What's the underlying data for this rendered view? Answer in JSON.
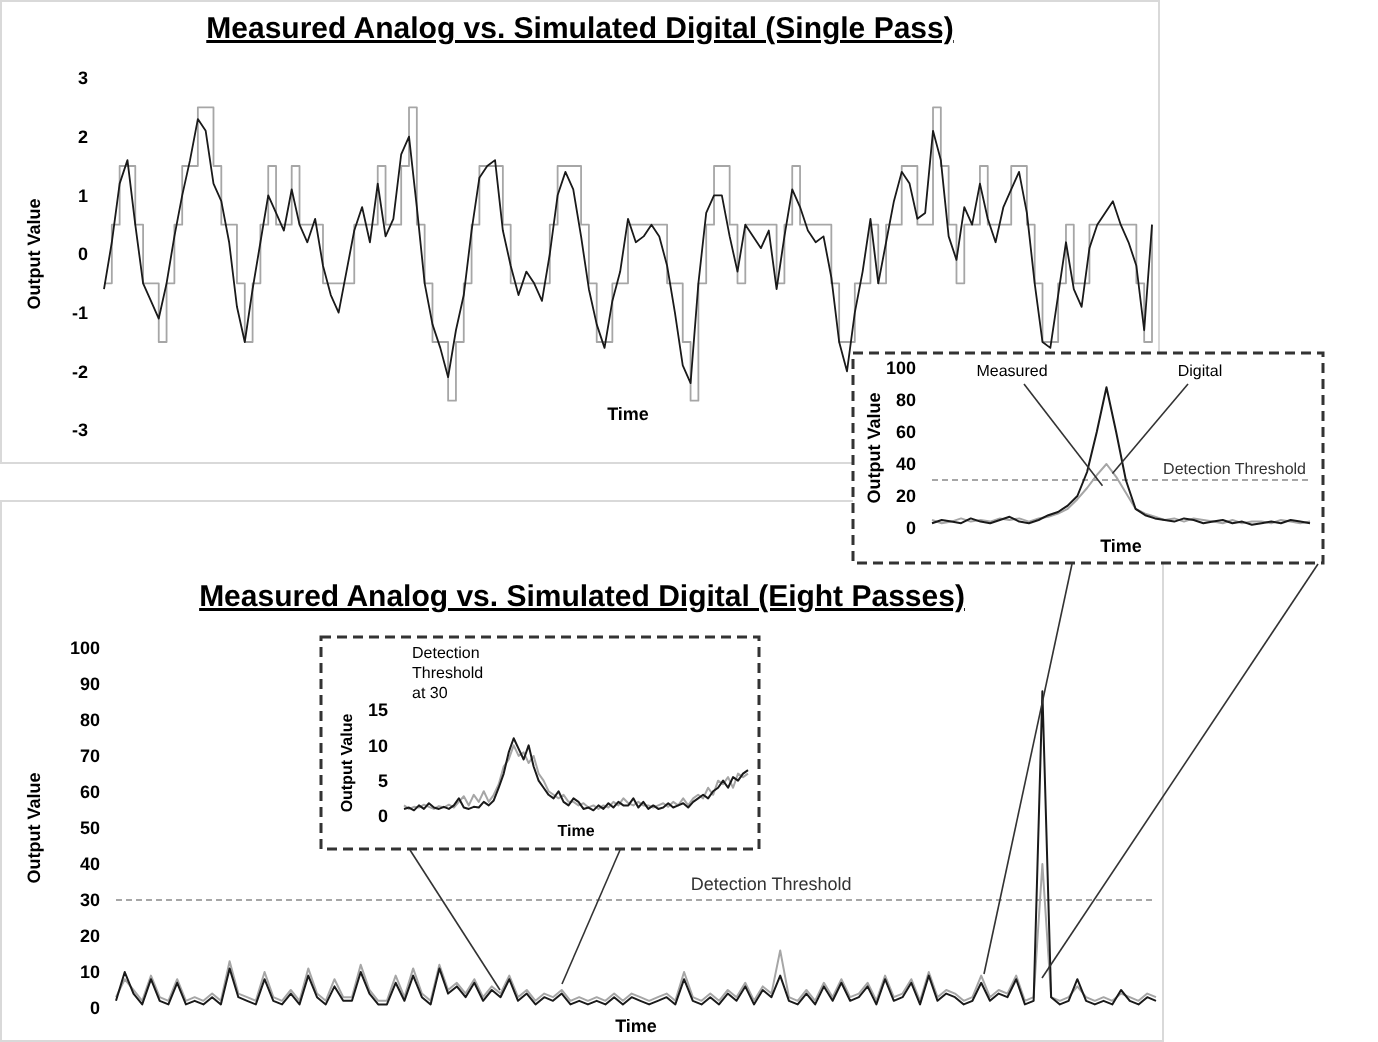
{
  "chart_data": [
    {
      "type": "line",
      "title": "Measured Analog vs. Simulated Digital (Single Pass)",
      "xlabel": "Time",
      "ylabel": "Output Value",
      "ylim": [
        -3,
        3
      ],
      "yticks": [
        -3,
        -2,
        -1,
        0,
        1,
        2,
        3
      ],
      "grid": false,
      "legend": false,
      "categories": [
        null,
        null,
        null,
        null,
        null,
        null,
        null,
        null,
        null,
        null,
        null,
        null,
        null,
        null,
        null,
        null,
        null,
        null,
        null,
        null,
        null,
        null,
        null,
        null,
        null,
        null,
        null,
        null,
        null,
        null,
        null,
        null,
        null,
        null,
        null,
        null,
        null,
        null,
        null,
        null,
        null,
        null,
        null,
        null,
        null,
        null,
        null,
        null,
        null,
        null,
        null,
        null,
        null,
        null,
        null,
        null,
        null,
        null,
        null,
        null,
        null,
        null,
        null,
        null,
        null,
        null,
        null,
        null,
        null,
        null,
        null,
        null,
        null,
        null,
        null,
        null,
        null,
        null,
        null,
        null,
        null,
        null,
        null,
        null,
        null,
        null,
        null,
        null,
        null,
        null,
        null,
        null,
        null,
        null,
        null,
        null,
        null,
        null,
        null,
        null,
        null,
        null,
        null,
        null,
        null,
        null,
        null,
        null,
        null,
        null,
        null,
        null,
        null,
        null,
        null,
        null,
        null,
        null,
        null,
        null,
        null,
        null,
        null,
        null,
        null,
        null,
        null,
        null,
        null,
        null,
        null,
        null,
        null,
        null,
        null
      ],
      "series": [
        {
          "type": "step",
          "color": "#a6a6a6",
          "values": [
            -0.5,
            0.5,
            1.5,
            1.5,
            0.5,
            -0.5,
            -0.5,
            -1.5,
            -0.5,
            0.5,
            1.5,
            1.5,
            2.5,
            2.5,
            1.5,
            0.5,
            0.5,
            -0.5,
            -1.5,
            -0.5,
            0.5,
            1.5,
            0.5,
            0.5,
            1.5,
            0.5,
            0.5,
            0.5,
            -0.5,
            -0.5,
            -0.5,
            -0.5,
            0.5,
            0.5,
            0.5,
            1.5,
            0.5,
            0.5,
            1.5,
            2.5,
            0.5,
            -0.5,
            -1.5,
            -1.5,
            -2.5,
            -1.5,
            -0.5,
            0.5,
            1.5,
            1.5,
            1.5,
            0.5,
            -0.5,
            -0.5,
            -0.5,
            -0.5,
            -0.5,
            0.5,
            1.5,
            1.5,
            1.5,
            0.5,
            -0.5,
            -1.5,
            -1.5,
            -0.5,
            -0.5,
            0.5,
            0.5,
            0.5,
            0.5,
            0.5,
            -0.5,
            -0.5,
            -1.5,
            -2.5,
            -0.5,
            0.5,
            1.5,
            1.5,
            0.5,
            -0.5,
            0.5,
            0.5,
            0.5,
            0.5,
            -0.5,
            0.5,
            1.5,
            0.5,
            0.5,
            0.5,
            0.5,
            -0.5,
            -1.5,
            -1.5,
            -0.5,
            -0.5,
            0.5,
            -0.5,
            0.5,
            0.5,
            1.5,
            1.5,
            0.5,
            0.5,
            2.5,
            1.5,
            0.5,
            -0.5,
            0.5,
            0.5,
            1.5,
            0.5,
            0.5,
            0.5,
            1.5,
            1.5,
            0.5,
            -0.5,
            -1.5,
            -1.5,
            -0.5,
            0.5,
            -0.5,
            -0.5,
            0.5,
            0.5,
            0.5,
            0.5,
            0.5,
            0.5,
            -0.5,
            -1.5,
            0.5
          ]
        },
        {
          "type": "line",
          "color": "#1a1a1a",
          "values": [
            -0.6,
            0.2,
            1.2,
            1.6,
            0.5,
            -0.5,
            -0.8,
            -1.1,
            -0.5,
            0.3,
            1.0,
            1.6,
            2.3,
            2.1,
            1.2,
            0.9,
            0.2,
            -0.9,
            -1.5,
            -0.6,
            0.2,
            1.0,
            0.7,
            0.4,
            1.1,
            0.5,
            0.2,
            0.6,
            -0.2,
            -0.7,
            -1.0,
            -0.3,
            0.4,
            0.8,
            0.2,
            1.2,
            0.3,
            0.6,
            1.7,
            2.0,
            0.8,
            -0.5,
            -1.2,
            -1.6,
            -2.1,
            -1.3,
            -0.7,
            0.4,
            1.3,
            1.5,
            1.6,
            0.4,
            -0.2,
            -0.7,
            -0.3,
            -0.5,
            -0.8,
            0.0,
            1.0,
            1.4,
            1.1,
            0.3,
            -0.6,
            -1.2,
            -1.6,
            -0.8,
            -0.3,
            0.6,
            0.2,
            0.3,
            0.5,
            0.3,
            -0.2,
            -1.0,
            -1.9,
            -2.2,
            -0.5,
            0.7,
            1.0,
            1.0,
            0.3,
            -0.3,
            0.5,
            0.3,
            0.1,
            0.4,
            -0.6,
            0.3,
            1.1,
            0.8,
            0.4,
            0.2,
            0.3,
            -0.4,
            -1.5,
            -2.0,
            -1.0,
            -0.3,
            0.6,
            -0.5,
            0.2,
            0.9,
            1.4,
            1.2,
            0.6,
            0.7,
            2.1,
            1.6,
            0.3,
            -0.1,
            0.8,
            0.5,
            1.2,
            0.6,
            0.2,
            0.8,
            1.1,
            1.4,
            0.7,
            -0.5,
            -1.5,
            -1.6,
            -0.7,
            0.2,
            -0.6,
            -0.9,
            0.1,
            0.5,
            0.7,
            0.9,
            0.5,
            0.2,
            -0.2,
            -1.3,
            0.5
          ]
        }
      ]
    },
    {
      "type": "line",
      "xlabel": "Time",
      "ylabel": "Output Value",
      "ylim": [
        0,
        100
      ],
      "yticks": [
        0,
        20,
        40,
        60,
        80,
        100
      ],
      "grid": false,
      "legend": false,
      "categories": [
        null,
        null,
        null,
        null,
        null,
        null,
        null,
        null,
        null,
        null,
        null,
        null,
        null,
        null,
        null,
        null,
        null,
        null,
        null,
        null,
        null,
        null,
        null,
        null,
        null,
        null,
        null,
        null,
        null,
        null,
        null,
        null,
        null,
        null,
        null,
        null,
        null,
        null,
        null,
        null
      ],
      "ref_lines": [
        {
          "axis": "y",
          "value": 30,
          "label": "Detection Threshold",
          "color": "#a6a6a6",
          "line_style": "dashed"
        }
      ],
      "series": [
        {
          "name": "Digital",
          "color": "#a6a6a6",
          "values": [
            5,
            3,
            4,
            6,
            4,
            5,
            4,
            6,
            5,
            6,
            4,
            6,
            7,
            9,
            12,
            18,
            25,
            33,
            40,
            32,
            22,
            12,
            9,
            7,
            5,
            6,
            4,
            6,
            5,
            4,
            3,
            5,
            3,
            4,
            4,
            3,
            5,
            4,
            3,
            4
          ]
        },
        {
          "name": "Measured",
          "color": "#1a1a1a",
          "values": [
            3,
            5,
            4,
            3,
            6,
            4,
            3,
            5,
            7,
            4,
            3,
            5,
            8,
            10,
            14,
            20,
            35,
            60,
            88,
            60,
            30,
            12,
            8,
            6,
            5,
            4,
            6,
            5,
            3,
            4,
            5,
            3,
            4,
            2,
            3,
            4,
            3,
            5,
            4,
            3
          ]
        }
      ]
    },
    {
      "type": "line",
      "title": "Measured Analog vs. Simulated Digital (Eight Passes)",
      "xlabel": "Time",
      "ylabel": "Output Value",
      "ylim": [
        0,
        100
      ],
      "yticks": [
        0,
        10,
        20,
        30,
        40,
        50,
        60,
        70,
        80,
        90,
        100
      ],
      "grid": false,
      "legend": false,
      "categories": [
        null,
        null,
        null,
        null,
        null,
        null,
        null,
        null,
        null,
        null,
        null,
        null,
        null,
        null,
        null,
        null,
        null,
        null,
        null,
        null,
        null,
        null,
        null,
        null,
        null,
        null,
        null,
        null,
        null,
        null,
        null,
        null,
        null,
        null,
        null,
        null,
        null,
        null,
        null,
        null,
        null,
        null,
        null,
        null,
        null,
        null,
        null,
        null,
        null,
        null,
        null,
        null,
        null,
        null,
        null,
        null,
        null,
        null,
        null,
        null,
        null,
        null,
        null,
        null,
        null,
        null,
        null,
        null,
        null,
        null,
        null,
        null,
        null,
        null,
        null,
        null,
        null,
        null,
        null,
        null,
        null,
        null,
        null,
        null,
        null,
        null,
        null,
        null,
        null,
        null,
        null,
        null,
        null,
        null,
        null,
        null,
        null,
        null,
        null,
        null,
        null,
        null,
        null,
        null,
        null,
        null,
        null,
        null,
        null,
        null,
        null,
        null,
        null,
        null,
        null,
        null,
        null,
        null,
        null,
        null
      ],
      "ref_lines": [
        {
          "axis": "y",
          "value": 30,
          "label": "Detection Threshold",
          "color": "#a6a6a6",
          "line_style": "dashed"
        }
      ],
      "series": [
        {
          "color": "#a6a6a6",
          "values": [
            3,
            8,
            5,
            2,
            9,
            3,
            2,
            8,
            2,
            3,
            2,
            4,
            2,
            13,
            4,
            3,
            2,
            10,
            3,
            2,
            5,
            2,
            11,
            4,
            2,
            8,
            3,
            3,
            12,
            5,
            2,
            2,
            9,
            3,
            11,
            4,
            2,
            12,
            5,
            7,
            4,
            8,
            3,
            6,
            4,
            9,
            3,
            5,
            2,
            4,
            3,
            5,
            2,
            3,
            2,
            3,
            2,
            4,
            2,
            4,
            3,
            2,
            3,
            4,
            2,
            10,
            3,
            2,
            4,
            2,
            5,
            3,
            7,
            2,
            6,
            4,
            16,
            3,
            2,
            5,
            2,
            7,
            3,
            8,
            3,
            4,
            7,
            2,
            9,
            3,
            4,
            8,
            2,
            10,
            3,
            5,
            4,
            2,
            3,
            9,
            3,
            5,
            4,
            9,
            2,
            3,
            40,
            3,
            2,
            3,
            6,
            3,
            2,
            3,
            2,
            4,
            3,
            2,
            4,
            3
          ]
        },
        {
          "color": "#1a1a1a",
          "values": [
            2,
            10,
            4,
            1,
            8,
            2,
            1,
            7,
            1,
            2,
            1,
            3,
            1,
            11,
            3,
            2,
            1,
            8,
            2,
            1,
            4,
            1,
            9,
            3,
            1,
            6,
            2,
            2,
            10,
            4,
            1,
            1,
            7,
            2,
            9,
            3,
            1,
            11,
            4,
            6,
            3,
            7,
            2,
            5,
            3,
            8,
            2,
            4,
            1,
            3,
            2,
            4,
            1,
            2,
            1,
            2,
            1,
            3,
            1,
            3,
            2,
            1,
            2,
            3,
            1,
            8,
            2,
            1,
            3,
            1,
            4,
            2,
            6,
            1,
            5,
            3,
            9,
            2,
            1,
            4,
            1,
            6,
            2,
            7,
            2,
            3,
            6,
            1,
            8,
            2,
            3,
            7,
            1,
            9,
            2,
            4,
            3,
            1,
            2,
            7,
            2,
            4,
            3,
            8,
            1,
            2,
            88,
            3,
            1,
            2,
            8,
            2,
            1,
            2,
            1,
            5,
            2,
            1,
            3,
            2
          ]
        }
      ]
    },
    {
      "type": "line",
      "xlabel": "Time",
      "ylabel": "Output Value",
      "ylim": [
        0,
        15
      ],
      "yticks": [
        0,
        5,
        10,
        15
      ],
      "grid": false,
      "legend": false,
      "annotations": [
        "Detection Threshold at 30"
      ],
      "categories": [
        null,
        null,
        null,
        null,
        null,
        null,
        null,
        null,
        null,
        null,
        null,
        null,
        null,
        null,
        null,
        null,
        null,
        null,
        null,
        null,
        null,
        null,
        null,
        null,
        null,
        null,
        null,
        null,
        null,
        null,
        null,
        null,
        null,
        null,
        null,
        null,
        null,
        null,
        null,
        null,
        null,
        null,
        null,
        null,
        null,
        null,
        null,
        null,
        null,
        null,
        null,
        null,
        null,
        null,
        null,
        null,
        null,
        null,
        null,
        null,
        null,
        null,
        null,
        null,
        null,
        null,
        null,
        null,
        null,
        null
      ],
      "series": [
        {
          "color": "#a6a6a6",
          "values": [
            1.5,
            1,
            1.3,
            1.2,
            1.6,
            1.3,
            1,
            1.4,
            1.2,
            1.6,
            1.2,
            2,
            2.8,
            1.5,
            3,
            2,
            3.5,
            2,
            3,
            4.5,
            7,
            8,
            10,
            8.5,
            9,
            7.5,
            8.5,
            6,
            5,
            3.5,
            3,
            2.5,
            3,
            2,
            2,
            1.5,
            1.8,
            1.2,
            1.5,
            1,
            1.5,
            1.2,
            2,
            1.5,
            2.5,
            1.8,
            1.5,
            2,
            1.5,
            1.5,
            1.2,
            1.5,
            1.8,
            1.3,
            2,
            1.5,
            2.5,
            1.5,
            2.5,
            3,
            2.5,
            4,
            3,
            5,
            4.5,
            5.5,
            4,
            6,
            5.5,
            6
          ]
        },
        {
          "color": "#1a1a1a",
          "values": [
            1,
            1.2,
            0.8,
            1.5,
            1,
            1.8,
            1.2,
            1,
            1.3,
            1,
            1.5,
            2.5,
            1.2,
            1,
            1.3,
            1.2,
            2,
            1.5,
            2.2,
            4,
            6,
            9,
            11,
            9.5,
            8,
            10,
            7,
            5,
            4,
            3,
            2.5,
            3.5,
            2,
            1.5,
            2.5,
            2,
            1,
            1.2,
            0.8,
            1.5,
            1,
            1.8,
            1.2,
            2,
            1.5,
            1.5,
            2.5,
            1.2,
            2,
            1,
            1.5,
            1,
            1.2,
            1.8,
            1.2,
            1.5,
            1.8,
            1.2,
            2,
            2.5,
            3,
            2.5,
            3.5,
            4,
            5,
            4,
            5.5,
            5,
            6,
            6.5
          ]
        }
      ]
    }
  ]
}
